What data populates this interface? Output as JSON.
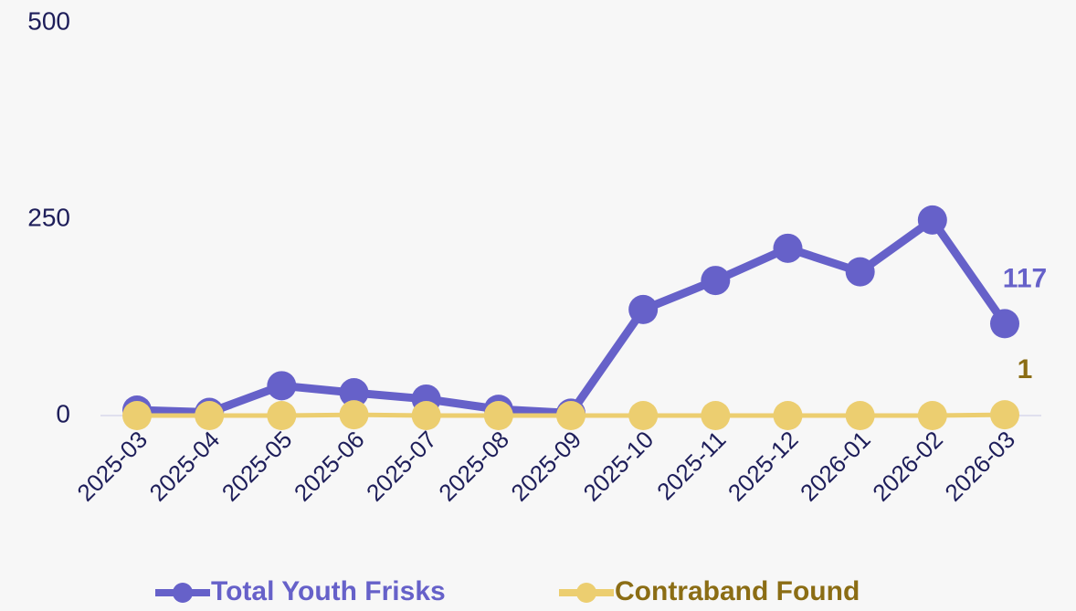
{
  "chart_data": {
    "type": "line",
    "x": [
      "2025-03",
      "2025-04",
      "2025-05",
      "2025-06",
      "2025-07",
      "2025-08",
      "2025-09",
      "2025-10",
      "2025-11",
      "2025-12",
      "2026-01",
      "2026-02",
      "2026-03"
    ],
    "series": [
      {
        "name": "Total Youth Frisks",
        "color": "#6661c9",
        "label_color": "#6661c9",
        "values": [
          7,
          4,
          38,
          29,
          21,
          8,
          3,
          135,
          172,
          213,
          183,
          249,
          117
        ]
      },
      {
        "name": "Contraband Found",
        "color": "#ecce70",
        "label_color": "#8b6d14",
        "values": [
          0,
          0,
          0,
          1,
          0,
          0,
          0,
          0,
          0,
          0,
          0,
          0,
          1
        ]
      }
    ],
    "ylim": [
      0,
      500
    ],
    "yticks": [
      0,
      250,
      500
    ]
  }
}
